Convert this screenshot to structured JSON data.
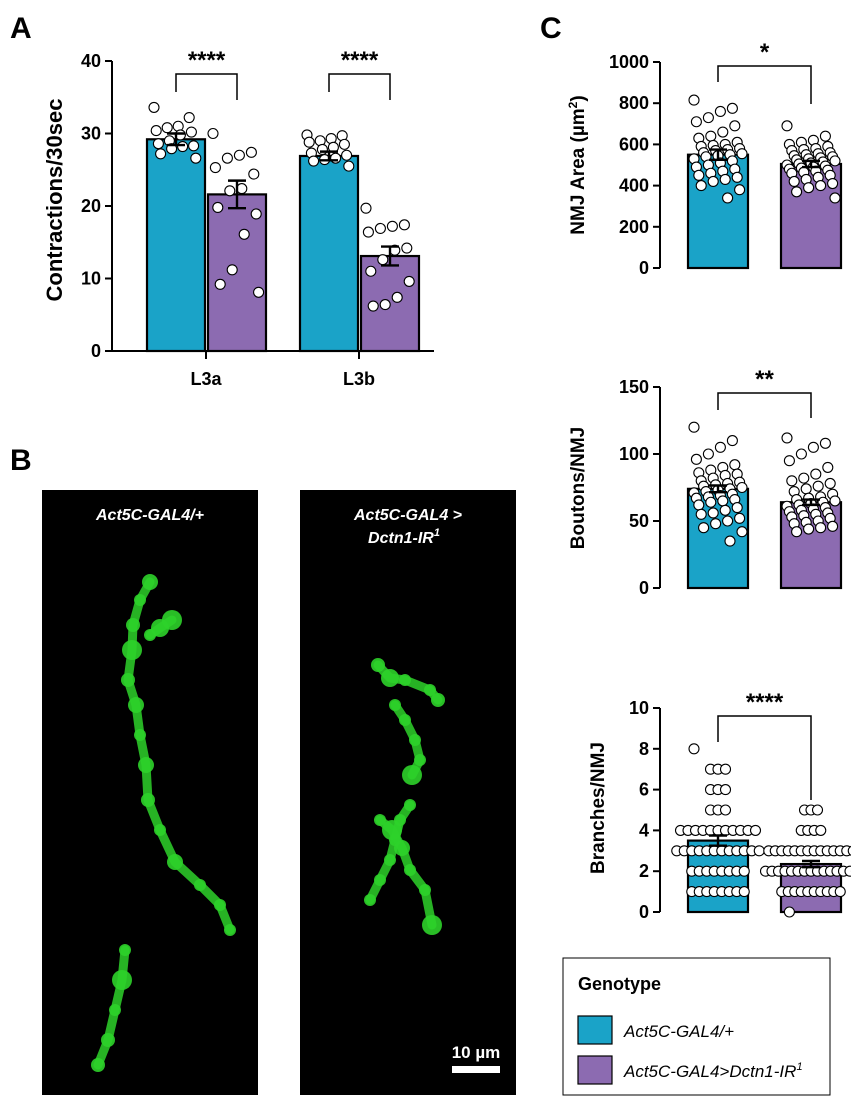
{
  "panels": {
    "a": "A",
    "b": "B",
    "c": "C"
  },
  "colors": {
    "group1": "#1aa3c8",
    "group2": "#8c6bb1",
    "neuron": "#2ed12a",
    "background": "#000000"
  },
  "microscopy": {
    "left_label": "Act5C-GAL4/+",
    "right_label_line1": "Act5C-GAL4 >",
    "right_label_line2": "Dctn1-IR",
    "right_label_sup": "1",
    "scale_bar": "10 µm"
  },
  "legend": {
    "title": "Genotype",
    "items": [
      {
        "label": "Act5C-GAL4/+",
        "sup": ""
      },
      {
        "label": "Act5C-GAL4>Dctn1-IR",
        "sup": "1"
      }
    ]
  },
  "chart_data": [
    {
      "id": "A",
      "type": "bar",
      "ylabel": "Contractions/30sec",
      "ylim": [
        0,
        40
      ],
      "yticks": [
        0,
        10,
        20,
        30,
        40
      ],
      "categories": [
        "L3a",
        "L3b"
      ],
      "series": [
        {
          "values": [
            29.2,
            26.9
          ],
          "sem": [
            0.8,
            0.6
          ],
          "points": [
            [
              33.6,
              32.2,
              31.0,
              30.8,
              30.4,
              30.2,
              29.8,
              29.0,
              28.6,
              28.3,
              28.2,
              27.9,
              27.2,
              26.6
            ],
            [
              29.8,
              29.7,
              29.3,
              29.0,
              28.8,
              28.5,
              28.1,
              27.8,
              27.3,
              27.0,
              26.6,
              26.4,
              26.2,
              25.5
            ]
          ]
        },
        {
          "values": [
            21.6,
            13.1
          ],
          "sem": [
            1.9,
            1.3
          ],
          "points": [
            [
              30.0,
              27.4,
              27.0,
              26.6,
              25.3,
              24.4,
              22.4,
              22.1,
              19.8,
              18.9,
              16.1,
              11.2,
              9.2,
              8.1
            ],
            [
              19.7,
              17.4,
              17.2,
              16.9,
              16.4,
              14.2,
              13.9,
              12.6,
              11.0,
              9.6,
              7.4,
              6.4,
              6.2
            ]
          ]
        }
      ],
      "significance": [
        "****",
        "****"
      ]
    },
    {
      "id": "C-area",
      "type": "bar",
      "ylabel": "NMJ Area (µm",
      "ylabel_sup": "2",
      "ylabel_end": ")",
      "ylim": [
        0,
        1000
      ],
      "yticks": [
        0,
        200,
        400,
        600,
        800,
        1000
      ],
      "categories": [
        "Act5C-GAL4/+",
        "Act5C-GAL4>Dctn1-IR1"
      ],
      "values": [
        550,
        505
      ],
      "sem": [
        25,
        15
      ],
      "points": [
        [
          815,
          775,
          760,
          730,
          710,
          690,
          660,
          640,
          630,
          610,
          600,
          595,
          590,
          580,
          575,
          570,
          560,
          555,
          550,
          545,
          540,
          530,
          520,
          510,
          500,
          490,
          480,
          470,
          460,
          450,
          440,
          430,
          420,
          400,
          380,
          340
        ],
        [
          690,
          640,
          620,
          610,
          600,
          590,
          580,
          575,
          570,
          560,
          555,
          550,
          545,
          540,
          535,
          530,
          525,
          520,
          515,
          510,
          505,
          500,
          495,
          490,
          485,
          480,
          475,
          470,
          465,
          460,
          450,
          440,
          430,
          420,
          410,
          400,
          390,
          370,
          340
        ]
      ],
      "significance": "*"
    },
    {
      "id": "C-boutons",
      "type": "bar",
      "ylabel": "Boutons/NMJ",
      "ylim": [
        0,
        150
      ],
      "yticks": [
        0,
        50,
        100,
        150
      ],
      "categories": [
        "Act5C-GAL4/+",
        "Act5C-GAL4>Dctn1-IR1"
      ],
      "values": [
        74,
        64
      ],
      "sem": [
        2.5,
        2.0
      ],
      "points": [
        [
          120,
          110,
          105,
          100,
          96,
          92,
          90,
          88,
          86,
          85,
          84,
          82,
          80,
          79,
          78,
          77,
          76,
          75,
          74,
          73,
          72,
          71,
          70,
          69,
          68,
          67,
          66,
          65,
          64,
          62,
          60,
          58,
          56,
          55,
          52,
          50,
          48,
          45,
          42,
          35
        ],
        [
          112,
          108,
          105,
          100,
          95,
          90,
          85,
          82,
          80,
          78,
          76,
          74,
          72,
          70,
          68,
          67,
          66,
          65,
          64,
          63,
          62,
          61,
          60,
          59,
          58,
          57,
          56,
          55,
          54,
          53,
          52,
          50,
          49,
          48,
          46,
          45,
          44,
          42
        ]
      ],
      "significance": "**"
    },
    {
      "id": "C-branches",
      "type": "bar",
      "ylabel": "Branches/NMJ",
      "ylim": [
        0,
        10
      ],
      "yticks": [
        0,
        2,
        4,
        6,
        8,
        10
      ],
      "categories": [
        "Act5C-GAL4/+",
        "Act5C-GAL4>Dctn1-IR1"
      ],
      "values": [
        3.5,
        2.35
      ],
      "sem": [
        0.25,
        0.15
      ],
      "points": [
        [
          8,
          7,
          7,
          7,
          6,
          6,
          6,
          5,
          5,
          5,
          4,
          4,
          4,
          4,
          4,
          4,
          4,
          4,
          4,
          4,
          4,
          3,
          3,
          3,
          3,
          3,
          3,
          3,
          3,
          3,
          3,
          3,
          3,
          2,
          2,
          2,
          2,
          2,
          2,
          2,
          2,
          1,
          1,
          1,
          1,
          1,
          1,
          1,
          1
        ],
        [
          5,
          5,
          5,
          4,
          4,
          4,
          4,
          3,
          3,
          3,
          3,
          3,
          3,
          3,
          3,
          3,
          3,
          3,
          3,
          3,
          3,
          2,
          2,
          2,
          2,
          2,
          2,
          2,
          2,
          2,
          2,
          2,
          2,
          2,
          2,
          2,
          1,
          1,
          1,
          1,
          1,
          1,
          1,
          1,
          1,
          1,
          0
        ]
      ],
      "significance": "****"
    }
  ]
}
